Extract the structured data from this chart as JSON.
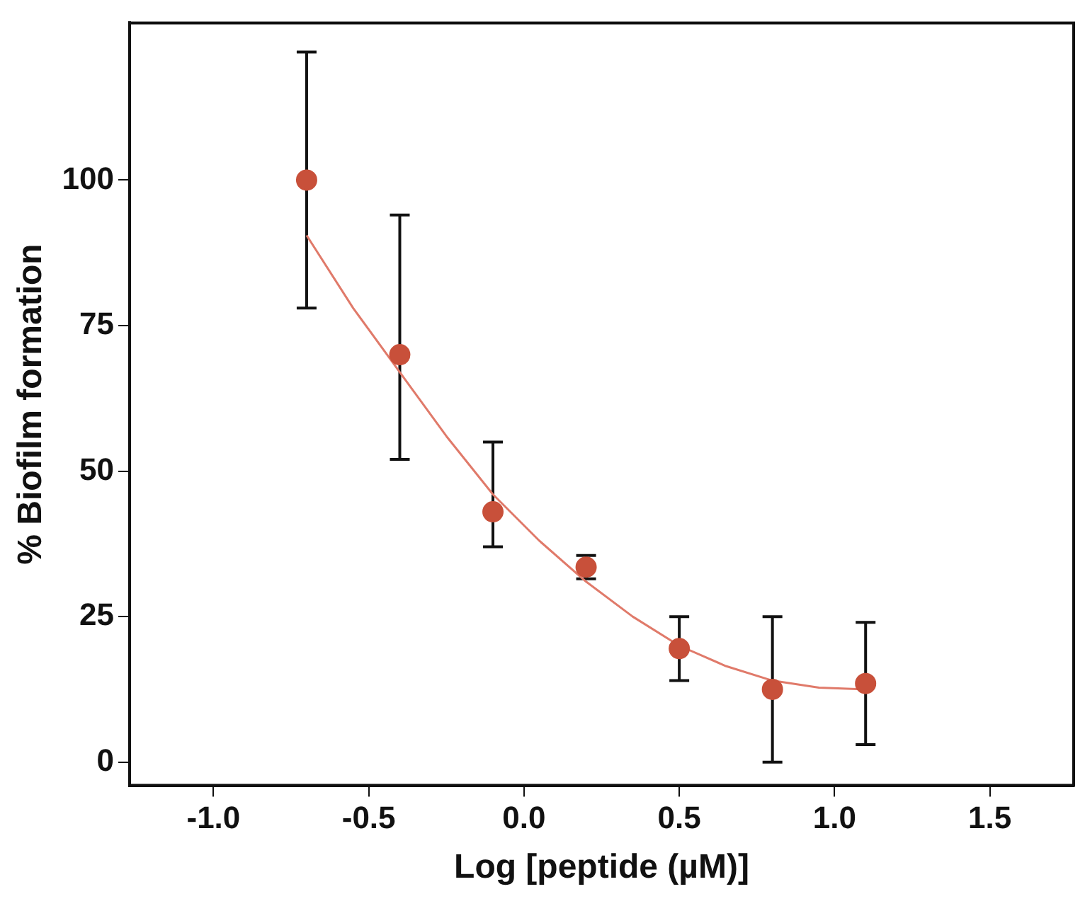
{
  "chart_data": {
    "type": "scatter",
    "xlabel": "Log [peptide (µM)]",
    "ylabel": "% Biofilm formation",
    "xlim": [
      -1.27,
      1.77
    ],
    "xticks": [
      {
        "value": -1.0,
        "label": "-1.0"
      },
      {
        "value": -0.5,
        "label": "-0.5"
      },
      {
        "value": 0,
        "label": "0.0"
      },
      {
        "value": 0.5,
        "label": "0.5"
      },
      {
        "value": 1.0,
        "label": "1.0"
      },
      {
        "value": 1.5,
        "label": "1.5"
      }
    ],
    "ylim": [
      -4,
      127
    ],
    "yticks": [
      0,
      25,
      50,
      75,
      100
    ],
    "grid": false,
    "legend": false,
    "marker": "circle",
    "series": [
      {
        "type": "scatter",
        "color": "#c8503a",
        "x": [
          -0.7,
          -0.4,
          -0.1,
          0.2,
          0.5,
          0.8,
          1.1
        ],
        "values": [
          100,
          70,
          43,
          33.5,
          19.5,
          12.5,
          13.5
        ],
        "errors": [
          [
            78,
            122
          ],
          [
            52,
            94
          ],
          [
            37,
            55
          ],
          [
            31.5,
            35.5
          ],
          [
            14,
            25
          ],
          [
            0,
            25
          ],
          [
            3,
            24
          ]
        ]
      },
      {
        "type": "line",
        "color": "#e07a6a",
        "marker": "none",
        "x": [
          -0.7,
          -0.55,
          -0.4,
          -0.25,
          -0.1,
          0.05,
          0.2,
          0.35,
          0.5,
          0.65,
          0.8,
          0.95,
          1.1
        ],
        "values": [
          90.5,
          78,
          67,
          56,
          46,
          38,
          31,
          25,
          20,
          16.5,
          14,
          12.8,
          12.5
        ]
      }
    ]
  }
}
